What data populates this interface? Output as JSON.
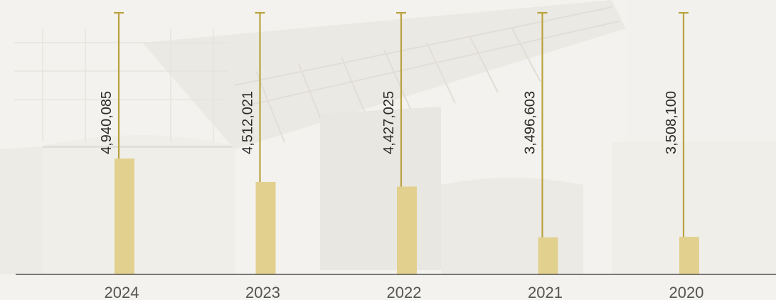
{
  "chart_data": {
    "type": "bar",
    "categories": [
      "2024",
      "2023",
      "2022",
      "2021",
      "2020"
    ],
    "values": [
      4940085,
      4512021,
      4427025,
      3496603,
      3508100
    ],
    "value_labels": [
      "4,940,085",
      "4,512,021",
      "4,427,025",
      "3,496,603",
      "3,508,100"
    ],
    "title": "",
    "xlabel": "",
    "ylabel": "",
    "grid": false,
    "legend": "none",
    "colors": {
      "bar": "#e2d08f",
      "pin": "#b9a23e",
      "axis": "#333333"
    }
  }
}
